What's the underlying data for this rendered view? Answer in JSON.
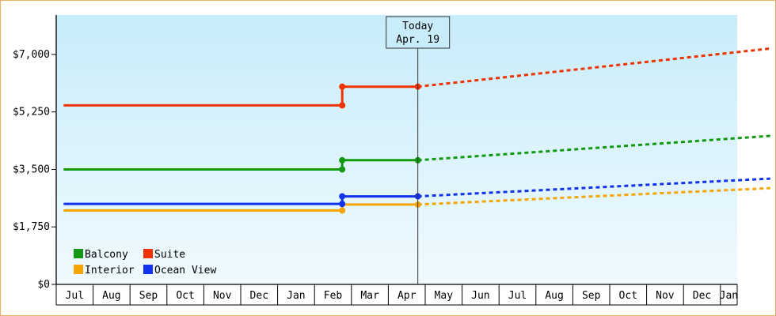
{
  "chart_data": {
    "type": "line",
    "title": "",
    "xlabel": "",
    "ylabel": "",
    "ylim": [
      0,
      8200
    ],
    "y_ticks": [
      {
        "value": 0,
        "label": "$0"
      },
      {
        "value": 1750,
        "label": "$1,750"
      },
      {
        "value": 3500,
        "label": "$3,500"
      },
      {
        "value": 5250,
        "label": "$5,250"
      },
      {
        "value": 7000,
        "label": "$7,000"
      }
    ],
    "x_months": [
      "Jul",
      "Aug",
      "Sep",
      "Oct",
      "Nov",
      "Dec",
      "Jan",
      "Feb",
      "Mar",
      "Apr",
      "May",
      "Jun",
      "Jul",
      "Aug",
      "Sep",
      "Oct",
      "Nov",
      "Dec",
      "Jan"
    ],
    "x_range": [
      0,
      18.85
    ],
    "today_marker": {
      "x": 9.3,
      "label_line1": "Today",
      "label_line2": "Apr. 19"
    },
    "grid": false,
    "legend_position": "bottom-left",
    "series": [
      {
        "name": "Balcony",
        "color": "#119911",
        "actual": [
          [
            -0.3,
            3500
          ],
          [
            7.25,
            3500
          ],
          [
            7.25,
            3780
          ],
          [
            9.3,
            3780
          ]
        ],
        "points": [
          [
            7.25,
            3500
          ],
          [
            7.25,
            3780
          ],
          [
            9.3,
            3780
          ]
        ],
        "forecast": [
          [
            9.3,
            3780
          ],
          [
            18.85,
            4520
          ]
        ]
      },
      {
        "name": "Suite",
        "color": "#ee3300",
        "actual": [
          [
            -0.3,
            5450
          ],
          [
            7.25,
            5450
          ],
          [
            7.25,
            6020
          ],
          [
            9.3,
            6020
          ]
        ],
        "points": [
          [
            7.25,
            5450
          ],
          [
            7.25,
            6020
          ],
          [
            9.3,
            6020
          ]
        ],
        "forecast": [
          [
            9.3,
            6020
          ],
          [
            18.85,
            7180
          ]
        ]
      },
      {
        "name": "Interior",
        "color": "#f5a400",
        "actual": [
          [
            -0.3,
            2250
          ],
          [
            7.25,
            2250
          ],
          [
            7.25,
            2430
          ],
          [
            9.3,
            2430
          ]
        ],
        "points": [
          [
            7.25,
            2250
          ],
          [
            9.3,
            2430
          ]
        ],
        "forecast": [
          [
            9.3,
            2430
          ],
          [
            18.85,
            2930
          ]
        ]
      },
      {
        "name": "Ocean View",
        "color": "#1133ee",
        "actual": [
          [
            -0.3,
            2450
          ],
          [
            7.25,
            2450
          ],
          [
            7.25,
            2680
          ],
          [
            9.3,
            2680
          ]
        ],
        "points": [
          [
            7.25,
            2450
          ],
          [
            7.25,
            2680
          ],
          [
            9.3,
            2680
          ]
        ],
        "forecast": [
          [
            9.3,
            2680
          ],
          [
            18.85,
            3220
          ]
        ]
      }
    ],
    "legend_order": [
      "Balcony",
      "Suite",
      "Interior",
      "Ocean View"
    ],
    "colors": {
      "plot_bg_top": "#c8ecfa",
      "plot_bg_bottom": "#f0faff",
      "frame_border": "#f0b060",
      "axis": "#000000"
    }
  }
}
